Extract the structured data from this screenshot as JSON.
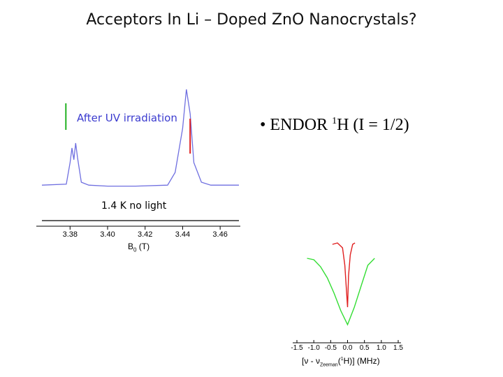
{
  "slide": {
    "title": "Acceptors In Li – Doped ZnO Nanocrystals?",
    "bullet": {
      "marker": "•",
      "text_before": "ENDOR ",
      "superscript": "1",
      "text_after": "H (I = 1/2)"
    }
  },
  "chart_data": [
    {
      "type": "line",
      "title": "",
      "xlabel_main": "B",
      "xlabel_sub": "0",
      "xlabel_unit": " (T)",
      "ylabel": "",
      "xlim": [
        3.365,
        3.47
      ],
      "x_ticks": [
        "3.38",
        "3.40",
        "3.42",
        "3.44",
        "3.46"
      ],
      "grid": false,
      "series": [
        {
          "name": "After UV irradiation",
          "color": "#6f6fe0",
          "x": [
            3.365,
            3.378,
            3.38,
            3.381,
            3.382,
            3.383,
            3.384,
            3.386,
            3.39,
            3.4,
            3.415,
            3.432,
            3.436,
            3.44,
            3.442,
            3.444,
            3.446,
            3.45,
            3.455,
            3.47
          ],
          "y": [
            0.02,
            0.03,
            0.25,
            0.4,
            0.28,
            0.45,
            0.3,
            0.05,
            0.02,
            0.01,
            0.01,
            0.02,
            0.15,
            0.6,
            1.0,
            0.75,
            0.25,
            0.05,
            0.02,
            0.02
          ]
        },
        {
          "name": "1.4 K no light",
          "color": "#000000",
          "x": [
            3.365,
            3.47
          ],
          "y": [
            0.0,
            0.0
          ]
        }
      ],
      "annotations": [
        "After UV irradiation",
        "1.4 K no light"
      ],
      "markers": [
        {
          "color": "#22b222",
          "at_x": 3.38
        },
        {
          "color": "#e02020",
          "at_x": 3.444
        }
      ]
    },
    {
      "type": "line",
      "title": "",
      "xlabel_pre": "[ν - ν",
      "xlabel_sub": "Zeeman",
      "xlabel_mid": "(",
      "xlabel_sup": "1",
      "xlabel_post": "H)] (MHz)",
      "ylabel": "",
      "xlim": [
        -1.5,
        1.5
      ],
      "x_ticks": [
        "-1.5",
        "-1.0",
        "-0.5",
        "0.0",
        "0.5",
        "1.0",
        "1.5"
      ],
      "grid": false,
      "series": [
        {
          "name": "green",
          "color": "#33dd33",
          "x": [
            -1.2,
            -1.0,
            -0.8,
            -0.6,
            -0.4,
            -0.2,
            0.0,
            0.2,
            0.4,
            0.6,
            0.8
          ],
          "y": [
            0.0,
            0.02,
            0.12,
            0.28,
            0.5,
            0.75,
            0.95,
            0.7,
            0.4,
            0.1,
            0.0
          ]
        },
        {
          "name": "red",
          "color": "#e02020",
          "x": [
            -0.45,
            -0.3,
            -0.15,
            -0.08,
            -0.02,
            0.0,
            0.03,
            0.08,
            0.15,
            0.22
          ],
          "y": [
            0.0,
            -0.02,
            0.05,
            0.3,
            0.75,
            0.9,
            0.45,
            0.15,
            0.0,
            -0.02
          ]
        }
      ]
    }
  ]
}
